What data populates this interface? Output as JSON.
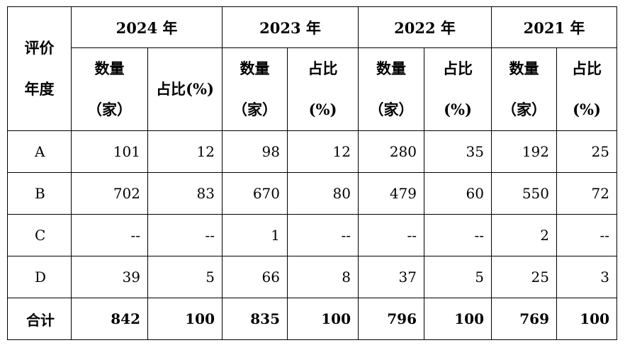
{
  "header": {
    "corner": [
      "评价",
      "年度"
    ],
    "years": [
      "2024 年",
      "2023 年",
      "2022 年",
      "2021 年"
    ],
    "subheaders": [
      [
        [
          "数量",
          "（家）"
        ],
        [
          "占比(%)"
        ]
      ],
      [
        [
          "数量",
          "（家）"
        ],
        [
          "占比",
          "(%)"
        ]
      ],
      [
        [
          "数量",
          "（家）"
        ],
        [
          "占比",
          "(%)"
        ]
      ],
      [
        [
          "数量",
          "（家）"
        ],
        [
          "占比",
          "(%)"
        ]
      ]
    ]
  },
  "table": {
    "rows": [
      {
        "label": "A",
        "cells": [
          101,
          12,
          98,
          12,
          280,
          35,
          192,
          25
        ]
      },
      {
        "label": "B",
        "cells": [
          702,
          83,
          670,
          80,
          479,
          60,
          550,
          72
        ]
      },
      {
        "label": "C",
        "cells": [
          "--",
          "--",
          1,
          "--",
          "--",
          "--",
          2,
          "--"
        ]
      },
      {
        "label": "D",
        "cells": [
          39,
          5,
          66,
          8,
          37,
          5,
          25,
          3
        ]
      },
      {
        "label": "合计",
        "cells": [
          842,
          100,
          835,
          100,
          796,
          100,
          769,
          100
        ]
      }
    ]
  }
}
